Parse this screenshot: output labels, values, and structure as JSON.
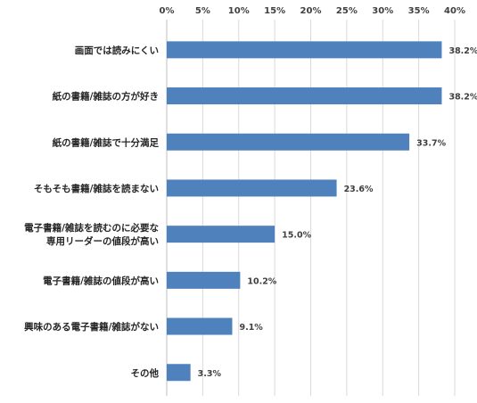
{
  "chart_data": {
    "type": "bar",
    "orientation": "horizontal",
    "title": "",
    "xlabel": "",
    "ylabel": "",
    "xlim": [
      0,
      40
    ],
    "x_ticks": [
      "0%",
      "5%",
      "10%",
      "15%",
      "20%",
      "25%",
      "30%",
      "35%",
      "40%"
    ],
    "x_axis_position": "top",
    "grid": true,
    "legend": "none",
    "bar_color": "#4f81bd",
    "categories": [
      [
        "画面では読みにくい"
      ],
      [
        "紙の書籍/雑誌の方が好き"
      ],
      [
        "紙の書籍/雑誌で十分満足"
      ],
      [
        "そもそも書籍/雑誌を読まない"
      ],
      [
        "電子書籍/雑誌を読むのに必要な",
        "専用リーダーの値段が高い"
      ],
      [
        "電子書籍/雑誌の値段が高い"
      ],
      [
        "興味のある電子書籍/雑誌がない"
      ],
      [
        "その他"
      ]
    ],
    "values": [
      38.2,
      38.2,
      33.7,
      23.6,
      15.0,
      10.2,
      9.1,
      3.3
    ],
    "value_labels": [
      "38.2%",
      "38.2%",
      "33.7%",
      "23.6%",
      "15.0%",
      "10.2%",
      "9.1%",
      "3.3%"
    ]
  }
}
